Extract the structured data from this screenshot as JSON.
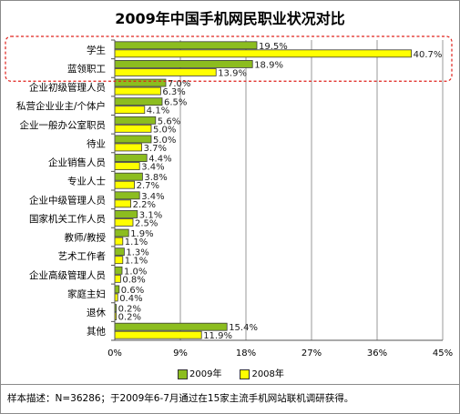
{
  "chart_data": {
    "type": "bar",
    "orientation": "horizontal",
    "title": "2009年中国手机网民职业状况对比",
    "categories": [
      "学生",
      "蓝领职工",
      "企业初级管理人员",
      "私营企业业主/个体户",
      "企业一般办公室职员",
      "待业",
      "企业销售人员",
      "专业人士",
      "企业中级管理人员",
      "国家机关工作人员",
      "教师/教授",
      "艺术工作者",
      "企业高级管理人员",
      "家庭主妇",
      "退休",
      "其他"
    ],
    "series": [
      {
        "name": "2009年",
        "color": "#8cbd1f",
        "values": [
          19.5,
          18.9,
          7.0,
          6.5,
          5.6,
          5.0,
          4.4,
          3.8,
          3.4,
          3.1,
          1.9,
          1.3,
          1.0,
          0.6,
          0.2,
          15.4
        ],
        "labels": [
          "19.5%",
          "18.9%",
          "7.0%",
          "6.5%",
          "5.6%",
          "5.0%",
          "4.4%",
          "3.8%",
          "3.4%",
          "3.1%",
          "1.9%",
          "1.3%",
          "1.0%",
          "0.6%",
          "0.2%",
          "15.4%"
        ]
      },
      {
        "name": "2008年",
        "color": "#ffff00",
        "values": [
          40.7,
          13.9,
          6.3,
          4.1,
          5.0,
          3.7,
          3.4,
          2.7,
          2.2,
          2.5,
          1.1,
          1.1,
          0.8,
          0.4,
          0.2,
          11.9
        ],
        "labels": [
          "40.7%",
          "13.9%",
          "6.3%",
          "4.1%",
          "5.0%",
          "3.7%",
          "3.4%",
          "2.7%",
          "2.2%",
          "2.5%",
          "1.1%",
          "1.1%",
          "0.8%",
          "0.4%",
          "0.2%",
          "11.9%"
        ]
      }
    ],
    "xlim": [
      0,
      45
    ],
    "xticks": [
      0,
      9,
      18,
      27,
      36,
      45
    ],
    "xtick_labels": [
      "0%",
      "9%",
      "18%",
      "27%",
      "36%",
      "45%"
    ],
    "grid": true,
    "legend_position": "bottom",
    "highlighted_categories": [
      "学生",
      "蓝领职工"
    ],
    "highlight_color": "#e0201b"
  },
  "footnote": "样本描述：N=36286；于2009年6-7月通过在15家主流手机网站联机调研获得。"
}
